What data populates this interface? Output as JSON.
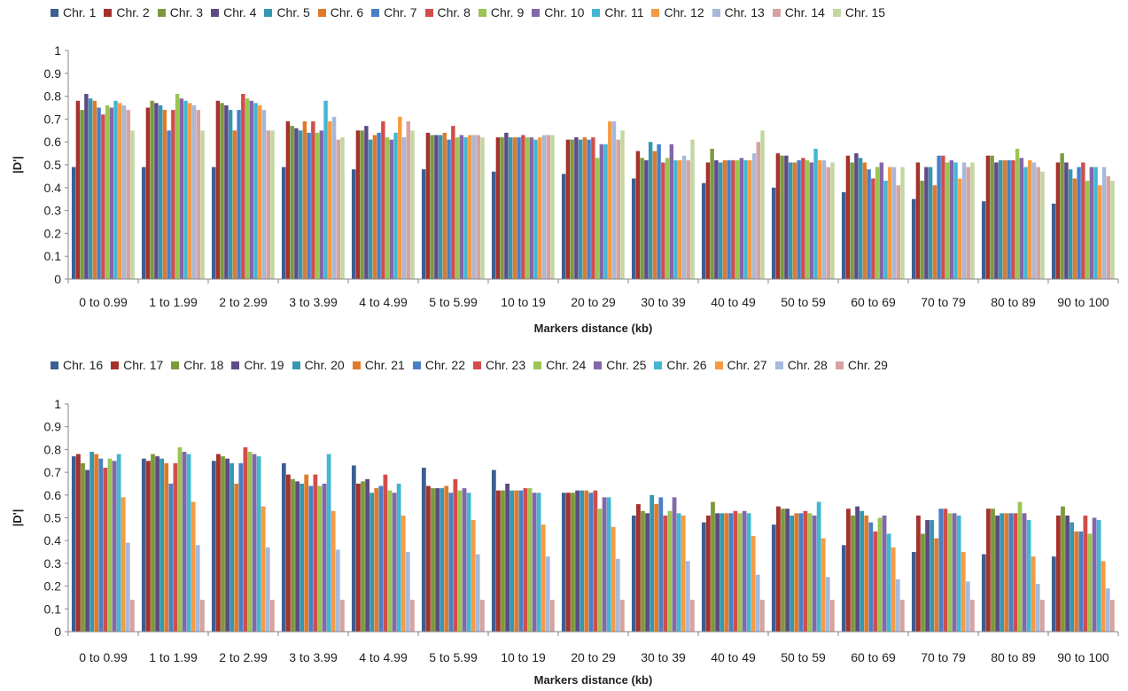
{
  "chart_data": [
    {
      "type": "bar",
      "categories": [
        "0 to 0.99",
        "1 to 1.99",
        "2 to 2.99",
        "3 to 3.99",
        "4 to 4.99",
        "5 to 5.99",
        "10 to 19",
        "20 to 29",
        "30 to 39",
        "40 to 49",
        "50 to 59",
        "60 to 69",
        "70 to 79",
        "80 to 89",
        "90 to 100"
      ],
      "xlabel": "Markers distance (kb)",
      "ylabel": "|D'|",
      "ylim": [
        0,
        1
      ],
      "yticks": [
        "0",
        "0.1",
        "0.2",
        "0.3",
        "0.4",
        "0.5",
        "0.6",
        "0.7",
        "0.8",
        "0.9",
        "1"
      ],
      "legend_position": "top",
      "series": [
        {
          "name": "Chr. 1",
          "color": "#3c5f91",
          "values": [
            0.49,
            0.49,
            0.49,
            0.49,
            0.48,
            0.48,
            0.47,
            0.46,
            0.44,
            0.42,
            0.4,
            0.38,
            0.35,
            0.34,
            0.33
          ]
        },
        {
          "name": "Chr. 2",
          "color": "#a5312d",
          "values": [
            0.78,
            0.75,
            0.78,
            0.69,
            0.65,
            0.64,
            0.62,
            0.61,
            0.56,
            0.51,
            0.55,
            0.54,
            0.51,
            0.54,
            0.51
          ]
        },
        {
          "name": "Chr. 3",
          "color": "#7b9a3c",
          "values": [
            0.74,
            0.78,
            0.77,
            0.67,
            0.65,
            0.63,
            0.62,
            0.61,
            0.53,
            0.57,
            0.54,
            0.51,
            0.43,
            0.54,
            0.55
          ]
        },
        {
          "name": "Chr. 4",
          "color": "#5e4a84",
          "values": [
            0.81,
            0.77,
            0.76,
            0.66,
            0.67,
            0.63,
            0.64,
            0.62,
            0.52,
            0.52,
            0.54,
            0.55,
            0.49,
            0.51,
            0.51
          ]
        },
        {
          "name": "Chr. 5",
          "color": "#3398b0",
          "values": [
            0.79,
            0.76,
            0.74,
            0.65,
            0.61,
            0.63,
            0.62,
            0.61,
            0.6,
            0.51,
            0.51,
            0.53,
            0.49,
            0.52,
            0.48
          ]
        },
        {
          "name": "Chr. 6",
          "color": "#e07a28",
          "values": [
            0.78,
            0.74,
            0.65,
            0.69,
            0.63,
            0.64,
            0.62,
            0.62,
            0.56,
            0.52,
            0.51,
            0.51,
            0.41,
            0.52,
            0.44
          ]
        },
        {
          "name": "Chr. 7",
          "color": "#4a7fc8",
          "values": [
            0.75,
            0.65,
            0.74,
            0.64,
            0.64,
            0.61,
            0.62,
            0.61,
            0.59,
            0.52,
            0.52,
            0.48,
            0.54,
            0.52,
            0.49
          ]
        },
        {
          "name": "Chr. 8",
          "color": "#d24d4a",
          "values": [
            0.72,
            0.74,
            0.81,
            0.69,
            0.69,
            0.67,
            0.63,
            0.62,
            0.51,
            0.52,
            0.53,
            0.44,
            0.54,
            0.52,
            0.51
          ]
        },
        {
          "name": "Chr. 9",
          "color": "#9ac553",
          "values": [
            0.76,
            0.81,
            0.79,
            0.64,
            0.62,
            0.62,
            0.62,
            0.53,
            0.53,
            0.52,
            0.52,
            0.49,
            0.51,
            0.57,
            0.43
          ]
        },
        {
          "name": "Chr. 10",
          "color": "#8467aa",
          "values": [
            0.75,
            0.79,
            0.78,
            0.65,
            0.61,
            0.63,
            0.62,
            0.59,
            0.59,
            0.53,
            0.51,
            0.51,
            0.52,
            0.53,
            0.49
          ]
        },
        {
          "name": "Chr. 11",
          "color": "#43b6d2",
          "values": [
            0.78,
            0.78,
            0.77,
            0.78,
            0.64,
            0.62,
            0.61,
            0.59,
            0.52,
            0.52,
            0.57,
            0.43,
            0.51,
            0.49,
            0.49
          ]
        },
        {
          "name": "Chr. 12",
          "color": "#f59b43",
          "values": [
            0.77,
            0.77,
            0.76,
            0.69,
            0.71,
            0.63,
            0.62,
            0.69,
            0.52,
            0.52,
            0.52,
            0.49,
            0.44,
            0.52,
            0.41
          ]
        },
        {
          "name": "Chr. 13",
          "color": "#a7b9db",
          "values": [
            0.76,
            0.76,
            0.74,
            0.71,
            0.62,
            0.63,
            0.63,
            0.69,
            0.54,
            0.55,
            0.52,
            0.49,
            0.51,
            0.51,
            0.49
          ]
        },
        {
          "name": "Chr. 14",
          "color": "#d8a2a0",
          "values": [
            0.74,
            0.74,
            0.65,
            0.61,
            0.69,
            0.63,
            0.63,
            0.61,
            0.52,
            0.6,
            0.49,
            0.41,
            0.49,
            0.49,
            0.45
          ]
        },
        {
          "name": "Chr. 15",
          "color": "#c2d7a0",
          "values": [
            0.65,
            0.65,
            0.65,
            0.62,
            0.65,
            0.62,
            0.63,
            0.65,
            0.61,
            0.65,
            0.51,
            0.49,
            0.51,
            0.47,
            0.43
          ]
        }
      ]
    },
    {
      "type": "bar",
      "categories": [
        "0 to 0.99",
        "1 to 1.99",
        "2 to 2.99",
        "3 to 3.99",
        "4 to 4.99",
        "5 to 5.99",
        "10 to 19",
        "20 to 29",
        "30 to 39",
        "40 to 49",
        "50 to 59",
        "60 to 69",
        "70 to 79",
        "80 to 89",
        "90 to 100"
      ],
      "xlabel": "Markers distance (kb)",
      "ylabel": "|D'|",
      "ylim": [
        0,
        1
      ],
      "yticks": [
        "0",
        "0.1",
        "0.2",
        "0.3",
        "0.4",
        "0.5",
        "0.6",
        "0.7",
        "0.8",
        "0.9",
        "1"
      ],
      "legend_position": "top",
      "series": [
        {
          "name": "Chr. 16",
          "color": "#3c5f91",
          "values": [
            0.77,
            0.76,
            0.75,
            0.74,
            0.73,
            0.72,
            0.71,
            0.61,
            0.51,
            0.48,
            0.47,
            0.38,
            0.35,
            0.34,
            0.33
          ]
        },
        {
          "name": "Chr. 17",
          "color": "#a5312d",
          "values": [
            0.78,
            0.75,
            0.78,
            0.69,
            0.65,
            0.64,
            0.62,
            0.61,
            0.56,
            0.51,
            0.55,
            0.54,
            0.51,
            0.54,
            0.51
          ]
        },
        {
          "name": "Chr. 18",
          "color": "#7b9a3c",
          "values": [
            0.74,
            0.78,
            0.77,
            0.67,
            0.66,
            0.63,
            0.62,
            0.61,
            0.53,
            0.57,
            0.54,
            0.51,
            0.43,
            0.54,
            0.55
          ]
        },
        {
          "name": "Chr. 19",
          "color": "#5e4a84",
          "values": [
            0.71,
            0.77,
            0.76,
            0.66,
            0.67,
            0.63,
            0.65,
            0.62,
            0.52,
            0.52,
            0.54,
            0.55,
            0.49,
            0.51,
            0.51
          ]
        },
        {
          "name": "Chr. 20",
          "color": "#3398b0",
          "values": [
            0.79,
            0.76,
            0.74,
            0.65,
            0.61,
            0.63,
            0.62,
            0.62,
            0.6,
            0.52,
            0.51,
            0.53,
            0.49,
            0.52,
            0.48
          ]
        },
        {
          "name": "Chr. 21",
          "color": "#e07a28",
          "values": [
            0.78,
            0.74,
            0.65,
            0.69,
            0.63,
            0.64,
            0.62,
            0.62,
            0.56,
            0.52,
            0.52,
            0.51,
            0.41,
            0.52,
            0.44
          ]
        },
        {
          "name": "Chr. 22",
          "color": "#4a7fc8",
          "values": [
            0.76,
            0.65,
            0.74,
            0.64,
            0.64,
            0.61,
            0.62,
            0.61,
            0.59,
            0.52,
            0.52,
            0.48,
            0.54,
            0.52,
            0.44
          ]
        },
        {
          "name": "Chr. 23",
          "color": "#d24d4a",
          "values": [
            0.72,
            0.74,
            0.81,
            0.69,
            0.69,
            0.67,
            0.63,
            0.62,
            0.51,
            0.53,
            0.53,
            0.44,
            0.54,
            0.52,
            0.51
          ]
        },
        {
          "name": "Chr. 24",
          "color": "#9ac553",
          "values": [
            0.76,
            0.81,
            0.79,
            0.64,
            0.62,
            0.62,
            0.63,
            0.54,
            0.53,
            0.52,
            0.52,
            0.5,
            0.52,
            0.57,
            0.43
          ]
        },
        {
          "name": "Chr. 25",
          "color": "#8467aa",
          "values": [
            0.75,
            0.79,
            0.78,
            0.65,
            0.61,
            0.63,
            0.61,
            0.59,
            0.59,
            0.53,
            0.51,
            0.51,
            0.52,
            0.52,
            0.5
          ]
        },
        {
          "name": "Chr. 26",
          "color": "#43b6d2",
          "values": [
            0.78,
            0.78,
            0.77,
            0.78,
            0.65,
            0.61,
            0.61,
            0.59,
            0.52,
            0.52,
            0.57,
            0.43,
            0.51,
            0.49,
            0.49
          ]
        },
        {
          "name": "Chr. 27",
          "color": "#f59b43",
          "values": [
            0.59,
            0.57,
            0.55,
            0.53,
            0.51,
            0.49,
            0.47,
            0.46,
            0.51,
            0.42,
            0.41,
            0.37,
            0.35,
            0.33,
            0.31
          ]
        },
        {
          "name": "Chr. 28",
          "color": "#a7b9db",
          "values": [
            0.39,
            0.38,
            0.37,
            0.36,
            0.35,
            0.34,
            0.33,
            0.32,
            0.31,
            0.25,
            0.24,
            0.23,
            0.22,
            0.21,
            0.19
          ]
        },
        {
          "name": "Chr. 29",
          "color": "#d8a2a0",
          "values": [
            0.14,
            0.14,
            0.14,
            0.14,
            0.14,
            0.14,
            0.14,
            0.14,
            0.14,
            0.14,
            0.14,
            0.14,
            0.14,
            0.14,
            0.14
          ]
        }
      ]
    }
  ]
}
